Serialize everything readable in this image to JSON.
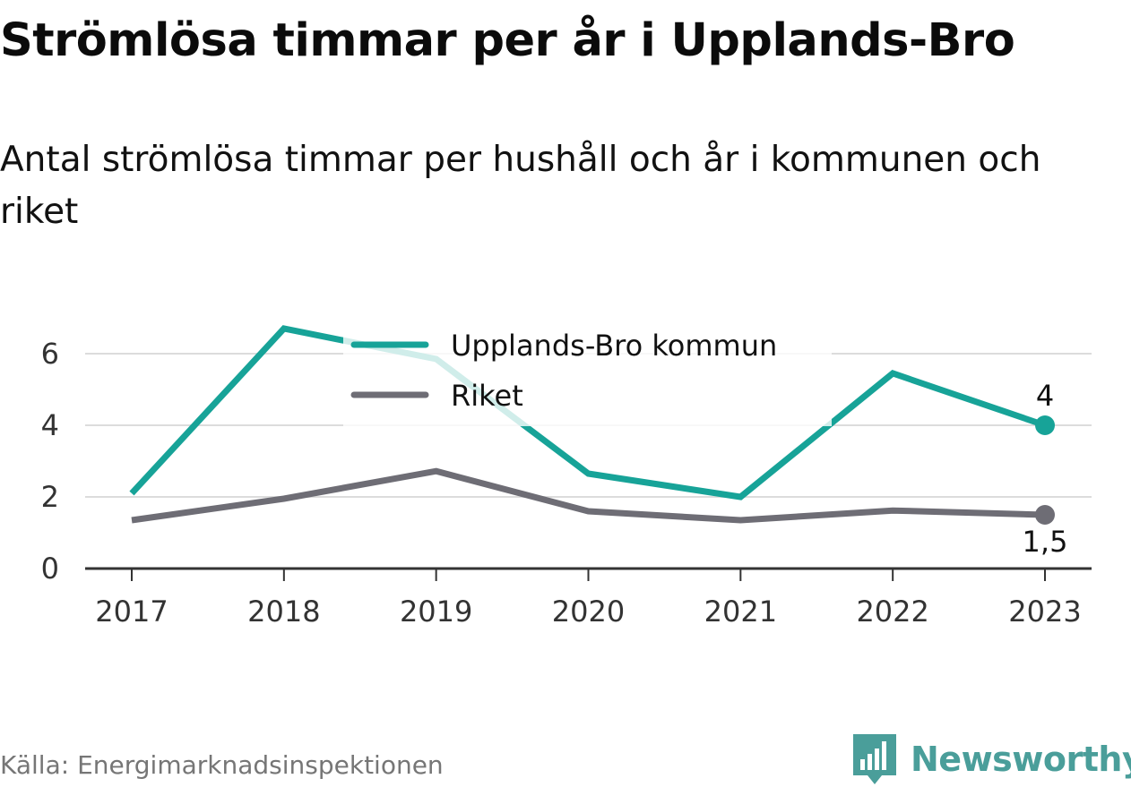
{
  "title": "Strömlösa timmar per år i Upplands-Bro",
  "subtitle": "Antal strömlösa timmar per hushåll och år i kommunen och riket",
  "source": "Källa: Energimarknadsinspektionen",
  "brand": {
    "name": "Newsworthy",
    "logo_icon": "newsworthy-logo-icon",
    "color": "#4a9e9a"
  },
  "chart_data": {
    "type": "line",
    "x": [
      2017,
      2018,
      2019,
      2020,
      2021,
      2022,
      2023
    ],
    "x_tick_labels": [
      "2017",
      "2018",
      "2019",
      "2020",
      "2021",
      "2022",
      "2023"
    ],
    "ylim": [
      0,
      7
    ],
    "y_ticks": [
      0,
      2,
      4,
      6
    ],
    "y_tick_labels": [
      "0",
      "2",
      "4",
      "6"
    ],
    "grid": true,
    "legend_position": "top-center",
    "series": [
      {
        "name": "Upplands-Bro kommun",
        "color": "#17a398",
        "values": [
          2.1,
          6.7,
          5.85,
          2.65,
          2.0,
          5.45,
          4.0
        ],
        "end_label": "4",
        "end_label_position": "above"
      },
      {
        "name": "Riket",
        "color": "#6e6d75",
        "values": [
          1.35,
          1.95,
          2.72,
          1.6,
          1.35,
          1.62,
          1.5
        ],
        "end_label": "1,5",
        "end_label_position": "below"
      }
    ]
  }
}
